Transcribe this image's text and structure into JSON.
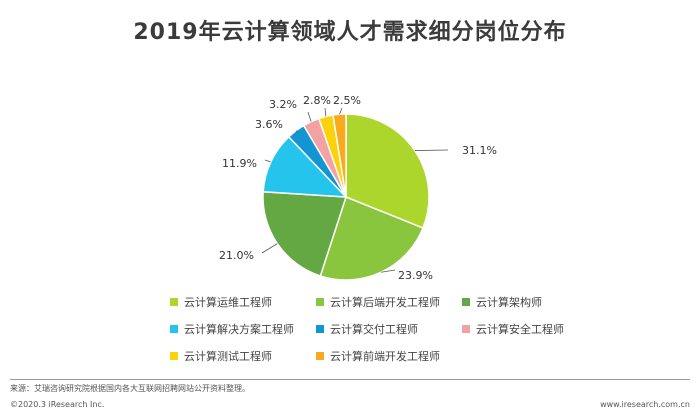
{
  "chart_data": {
    "type": "pie",
    "title": "2019年云计算领域人才需求细分岗位分布",
    "unit": "%",
    "slices": [
      {
        "label": "云计算运维工程师",
        "value": 31.1,
        "display": "31.1%",
        "color": "#add62d"
      },
      {
        "label": "云计算后端开发工程师",
        "value": 23.9,
        "display": "23.9%",
        "color": "#8ac53e"
      },
      {
        "label": "云计算架构师",
        "value": 21.0,
        "display": "21.0%",
        "color": "#64a844"
      },
      {
        "label": "云计算解决方案工程师",
        "value": 11.9,
        "display": "11.9%",
        "color": "#24c4ec"
      },
      {
        "label": "云计算交付工程师",
        "value": 3.6,
        "display": "3.6%",
        "color": "#1295d1"
      },
      {
        "label": "云计算安全工程师",
        "value": 3.2,
        "display": "3.2%",
        "color": "#f4a1a4"
      },
      {
        "label": "云计算测试工程师",
        "value": 2.8,
        "display": "2.8%",
        "color": "#fbd20b"
      },
      {
        "label": "云计算前端开发工程师",
        "value": 2.5,
        "display": "2.5%",
        "color": "#f8a91c"
      }
    ],
    "legend_position": "bottom"
  },
  "footer": {
    "source": "来源：艾瑞咨询研究院根据国内各大互联网招聘网站公开资料整理。",
    "copyright": "©2020.3 iResearch Inc.",
    "website": "www.iresearch.com.cn"
  }
}
